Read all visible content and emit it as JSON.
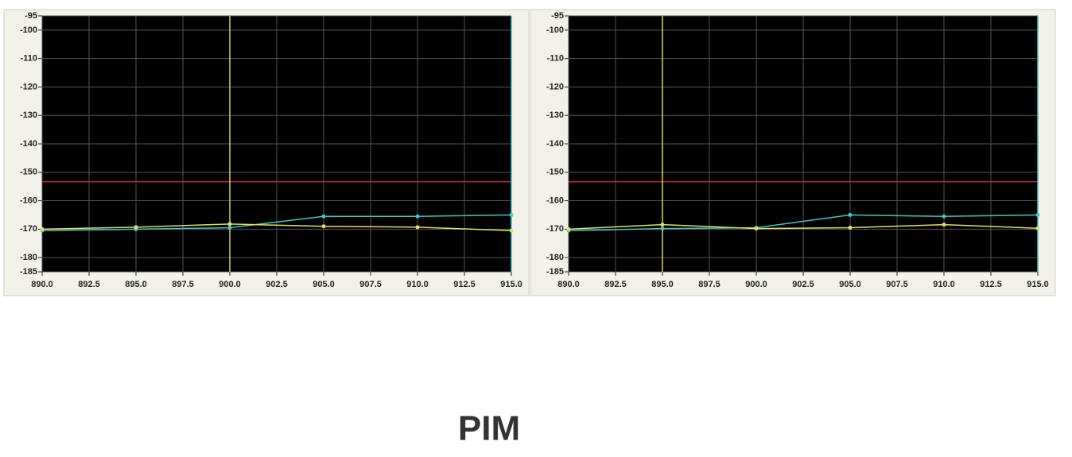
{
  "chart_data": [
    {
      "type": "line",
      "x": [
        890,
        895,
        900,
        905,
        910,
        915
      ],
      "series": [
        {
          "color": "#3fc8c8",
          "values": [
            -170.5,
            -170,
            -169.5,
            -165.5,
            -165.5,
            -165
          ]
        },
        {
          "color": "#e0e060",
          "values": [
            -170,
            -169.3,
            -168.2,
            -169,
            -169.3,
            -170.5
          ]
        }
      ],
      "xlim": [
        890,
        915
      ],
      "ylim": [
        -185,
        -95
      ],
      "xticks": [
        {
          "value": 890,
          "label": "890.0"
        },
        {
          "value": 892.5,
          "label": "892.5"
        },
        {
          "value": 895,
          "label": "895.0"
        },
        {
          "value": 897.5,
          "label": "897.5"
        },
        {
          "value": 900,
          "label": "900.0"
        },
        {
          "value": 902.5,
          "label": "902.5"
        },
        {
          "value": 905,
          "label": "905.0"
        },
        {
          "value": 907.5,
          "label": "907.5"
        },
        {
          "value": 910,
          "label": "910.0"
        },
        {
          "value": 912.5,
          "label": "912.5"
        },
        {
          "value": 915,
          "label": "915.0"
        }
      ],
      "yticks": [
        -95,
        -100,
        -110,
        -120,
        -130,
        -140,
        -150,
        -160,
        -170,
        -180,
        -185
      ],
      "grid": true,
      "limit_line": {
        "value": -153.3,
        "color": "#c0303a"
      },
      "markers": [
        {
          "x": 900,
          "color": "#d8d850"
        },
        {
          "x": 915,
          "color": "#3fc8c8"
        }
      ]
    },
    {
      "type": "line",
      "x": [
        890,
        895,
        900,
        905,
        910,
        915
      ],
      "series": [
        {
          "color": "#3fc8c8",
          "values": [
            -170.5,
            -169.8,
            -169.5,
            -165,
            -165.5,
            -165
          ]
        },
        {
          "color": "#e0e060",
          "values": [
            -170,
            -168.4,
            -169.8,
            -169.5,
            -168.4,
            -169.7
          ]
        }
      ],
      "xlim": [
        890,
        915
      ],
      "ylim": [
        -185,
        -95
      ],
      "xticks": [
        {
          "value": 890,
          "label": "890.0"
        },
        {
          "value": 892.5,
          "label": "892.5"
        },
        {
          "value": 895,
          "label": "895.0"
        },
        {
          "value": 897.5,
          "label": "897.5"
        },
        {
          "value": 900,
          "label": "900.0"
        },
        {
          "value": 902.5,
          "label": "902.5"
        },
        {
          "value": 905,
          "label": "905.0"
        },
        {
          "value": 907.5,
          "label": "907.5"
        },
        {
          "value": 910,
          "label": "910.0"
        },
        {
          "value": 912.5,
          "label": "912.5"
        },
        {
          "value": 915,
          "label": "915.0"
        }
      ],
      "yticks": [
        -95,
        -100,
        -110,
        -120,
        -130,
        -140,
        -150,
        -160,
        -170,
        -180,
        -185
      ],
      "grid": true,
      "limit_line": {
        "value": -153.3,
        "color": "#c0303a"
      },
      "markers": [
        {
          "x": 895,
          "color": "#d8d850"
        },
        {
          "x": 915,
          "color": "#3fc8c8"
        }
      ]
    }
  ],
  "caption": "PIM"
}
